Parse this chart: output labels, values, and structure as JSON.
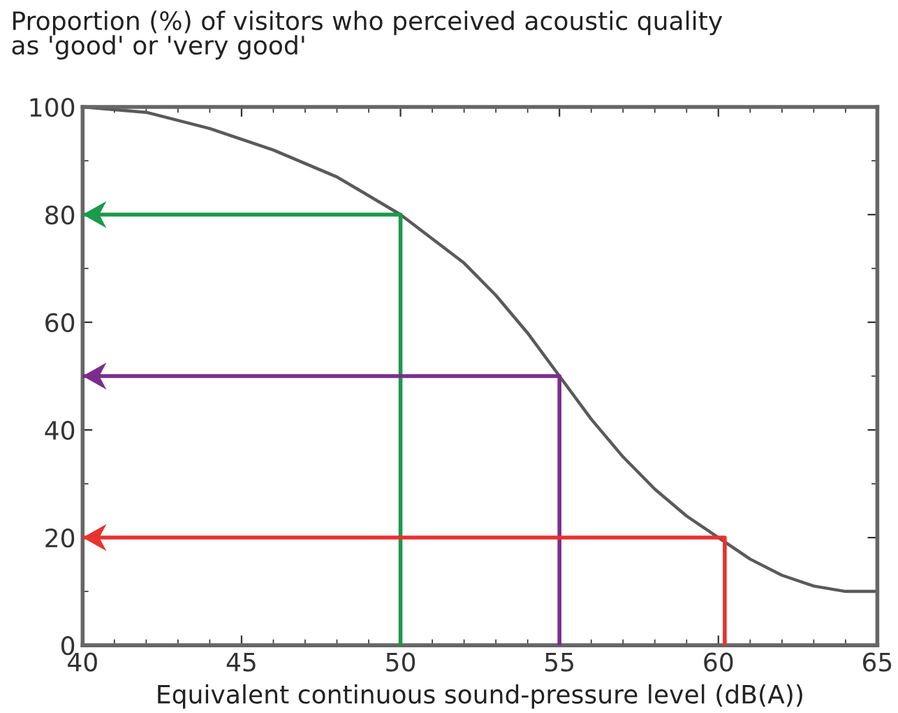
{
  "chart_data": {
    "type": "line",
    "title": "Proportion (%) of visitors who perceived acoustic quality\nas 'good' or 'very good'",
    "xlabel": "Equivalent continuous sound-pressure level (dB(A))",
    "xlim": [
      40,
      65
    ],
    "xticks": [
      40,
      45,
      50,
      55,
      60,
      65
    ],
    "ylim": [
      0,
      100
    ],
    "yticks": [
      0,
      20,
      40,
      60,
      80,
      100
    ],
    "grid": false,
    "legend": false,
    "marker": "none",
    "line_style": "solid",
    "series": [
      {
        "color": "#5a5a5a",
        "x": [
          40,
          42,
          44,
          46,
          48,
          50,
          52,
          53,
          54,
          55,
          56,
          57,
          58,
          59,
          60,
          61,
          62,
          63,
          64,
          65
        ],
        "values": [
          100,
          99,
          96,
          92,
          87,
          80,
          71,
          65,
          58,
          50,
          42,
          35,
          29,
          24,
          20,
          16,
          13,
          11,
          10,
          10
        ]
      },
      {
        "color": "#1a9a4a",
        "x": [
          50,
          50,
          40
        ],
        "values": [
          0,
          80,
          80
        ]
      },
      {
        "color": "#7b2d8e",
        "x": [
          55,
          55,
          40
        ],
        "values": [
          0,
          50,
          50
        ]
      },
      {
        "color": "#e8322f",
        "x": [
          60.2,
          60.2,
          40
        ],
        "values": [
          0,
          20,
          20
        ]
      }
    ]
  }
}
